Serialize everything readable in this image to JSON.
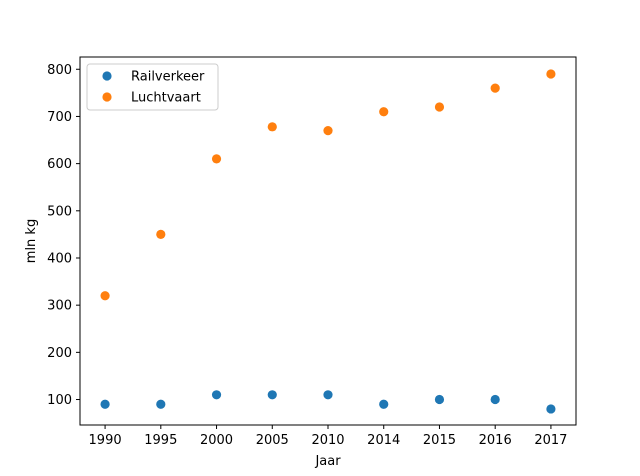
{
  "chart_data": {
    "type": "scatter",
    "title": "",
    "xlabel": "Jaar",
    "ylabel": "mln kg",
    "categories": [
      "1990",
      "1995",
      "2000",
      "2005",
      "2010",
      "2014",
      "2015",
      "2016",
      "2017"
    ],
    "y_ticks": [
      100,
      200,
      300,
      400,
      500,
      600,
      700,
      800
    ],
    "ylim": [
      46,
      826
    ],
    "grid": false,
    "legend_position": "top-left",
    "series": [
      {
        "name": "Railverkeer",
        "color": "#1f77b4",
        "values": [
          90,
          90,
          110,
          110,
          110,
          90,
          100,
          100,
          80
        ]
      },
      {
        "name": "Luchtvaart",
        "color": "#ff7f0e",
        "values": [
          320,
          450,
          610,
          678,
          670,
          710,
          720,
          760,
          790
        ]
      }
    ]
  }
}
